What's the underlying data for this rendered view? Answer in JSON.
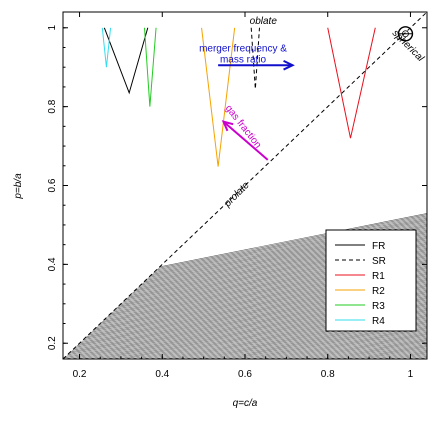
{
  "chart_data": {
    "type": "line",
    "xlabel": "q=c/a",
    "ylabel": "p=b/a",
    "xlim": [
      0.16,
      1.04
    ],
    "ylim": [
      0.16,
      1.04
    ],
    "x_ticks": [
      0.2,
      0.4,
      0.6,
      0.8,
      1
    ],
    "y_ticks": [
      0.2,
      0.4,
      0.6,
      0.8,
      1
    ],
    "x_tick_labels": [
      "0.2",
      "0.4",
      "0.6",
      "0.8",
      "1"
    ],
    "y_tick_labels": [
      "0.2",
      "0.4",
      "0.6",
      "0.8",
      "1"
    ],
    "grid": false,
    "legend_position": "bottom-right",
    "forbidden_region": {
      "label": "prolate",
      "boundary": [
        [
          0.16,
          0.16
        ],
        [
          1.04,
          1.04
        ]
      ],
      "hatched_side": "lower-right"
    },
    "series": [
      {
        "name": "FR",
        "color": "#000000",
        "dash": "solid",
        "points": [
          [
            0.26,
            1.0
          ],
          [
            0.32,
            0.835
          ],
          [
            0.365,
            1.0
          ]
        ]
      },
      {
        "name": "SR",
        "color": "#000000",
        "dash": "dashed",
        "points": [
          [
            0.615,
            1.0
          ],
          [
            0.625,
            0.845
          ],
          [
            0.635,
            1.0
          ]
        ]
      },
      {
        "name": "R1",
        "color": "#e8101c",
        "dash": "solid",
        "points": [
          [
            0.8,
            1.0
          ],
          [
            0.855,
            0.72
          ],
          [
            0.915,
            1.0
          ]
        ]
      },
      {
        "name": "R2",
        "color": "#f5a300",
        "dash": "solid",
        "points": [
          [
            0.495,
            1.0
          ],
          [
            0.535,
            0.648
          ],
          [
            0.575,
            1.0
          ]
        ]
      },
      {
        "name": "R3",
        "color": "#22cc22",
        "dash": "solid",
        "points": [
          [
            0.357,
            1.0
          ],
          [
            0.37,
            0.8
          ],
          [
            0.385,
            1.0
          ]
        ]
      },
      {
        "name": "R4",
        "color": "#33ddee",
        "dash": "solid",
        "points": [
          [
            0.255,
            1.0
          ],
          [
            0.265,
            0.9
          ],
          [
            0.275,
            1.0
          ]
        ]
      }
    ],
    "annotations": [
      {
        "text": "oblate",
        "x": 0.62,
        "y": 1.02,
        "color": "#000000"
      },
      {
        "text": "spherical",
        "x": 0.965,
        "y": 0.985,
        "color": "#000000"
      },
      {
        "text": "prolate",
        "x": 0.585,
        "y": 0.585,
        "color": "#000000"
      },
      {
        "text": "merger frequency & mass ratio",
        "x": 0.6,
        "y": 0.935,
        "color": "#1010cc"
      },
      {
        "text": "gas fraction",
        "x": 0.6,
        "y": 0.755,
        "color": "#cc00cc"
      }
    ],
    "arrows": [
      {
        "name": "merger-frequency-arrow",
        "color": "#1010cc",
        "from": [
          0.535,
          0.905
        ],
        "to": [
          0.715,
          0.905
        ]
      },
      {
        "name": "gas-fraction-arrow",
        "color": "#cc00cc",
        "from": [
          0.655,
          0.665
        ],
        "to": [
          0.548,
          0.762
        ]
      }
    ],
    "sphere_marker": {
      "x": 1.0,
      "y": 1.0
    }
  }
}
